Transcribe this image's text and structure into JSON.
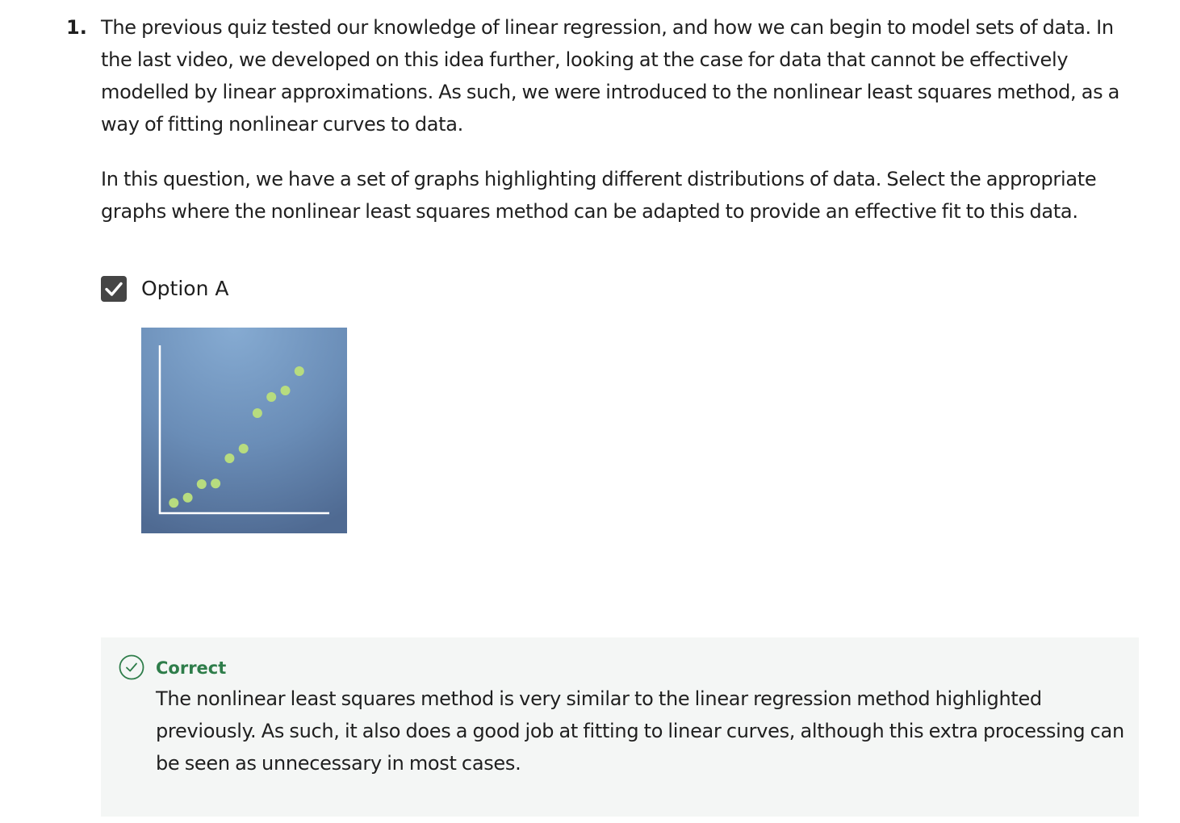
{
  "question": {
    "number": "1.",
    "paragraphs": [
      "The previous quiz tested our knowledge of linear regression, and how we can begin to model sets of data. In the last video, we developed on this idea further, looking at the case for data that cannot be effectively modelled by linear approximations. As such, we were introduced to the nonlinear least squares method, as a way of fitting nonlinear curves to data.",
      "In this question, we have a set of graphs highlighting different distributions of data. Select the appropriate graphs where the nonlinear least squares method can be adapted to provide an effective fit to this data."
    ]
  },
  "option": {
    "label": "Option A",
    "checked": true,
    "checkbox_icon": "check-icon"
  },
  "feedback": {
    "icon": "check-circle-icon",
    "status": "Correct",
    "text": "The nonlinear least squares method is very similar to the linear regression method highlighted previously. As such, it also does a good job at fitting to linear curves, although this extra processing can be seen as unnecessary in most cases.",
    "status_color": "#2e7d4a"
  },
  "chart_data": {
    "type": "scatter",
    "title": "",
    "xlabel": "",
    "ylabel": "",
    "x": [
      1,
      2,
      3,
      4,
      5,
      6,
      7,
      8,
      9,
      10
    ],
    "y": [
      1.6,
      2.4,
      4.5,
      4.6,
      8.5,
      10.0,
      15.5,
      18.0,
      19.0,
      22.0
    ],
    "xlim": [
      0,
      11
    ],
    "ylim": [
      0,
      26
    ],
    "grid": false,
    "point_color": "#b7dc7f",
    "background_color": "#6b8fb8"
  }
}
